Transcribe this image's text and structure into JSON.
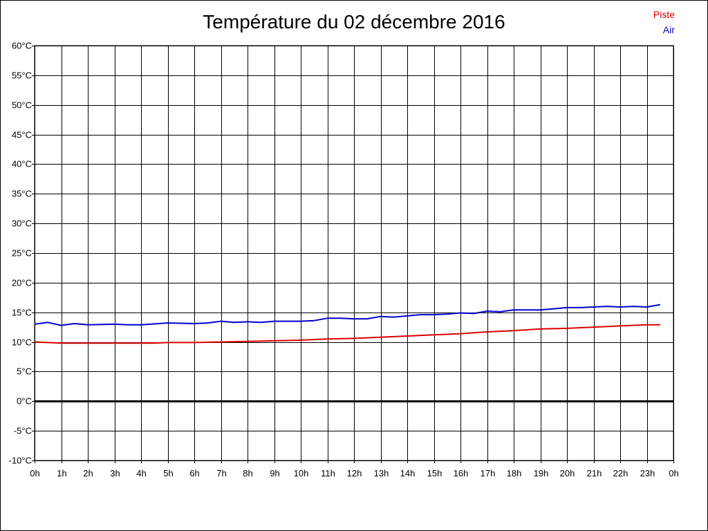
{
  "chart_data": {
    "type": "line",
    "title": "Température du 02 décembre 2016",
    "xlabel": "",
    "ylabel": "",
    "xlim": [
      0,
      24
    ],
    "ylim": [
      -10,
      60
    ],
    "y_tick_values": [
      60,
      55,
      50,
      45,
      40,
      35,
      30,
      25,
      20,
      15,
      10,
      5,
      0,
      -5,
      -10
    ],
    "y_tick_labels": [
      "60°C",
      "55°C",
      "50°C",
      "45°C",
      "40°C",
      "35°C",
      "30°C",
      "25°C",
      "20°C",
      "15°C",
      "10°C",
      "5°C",
      "0°C",
      "-5°C",
      "-10°C"
    ],
    "x_tick_values": [
      0,
      1,
      2,
      3,
      4,
      5,
      6,
      7,
      8,
      9,
      10,
      11,
      12,
      13,
      14,
      15,
      16,
      17,
      18,
      19,
      20,
      21,
      22,
      23,
      24
    ],
    "x_tick_labels": [
      "0h",
      "1h",
      "2h",
      "3h",
      "4h",
      "5h",
      "6h",
      "7h",
      "8h",
      "9h",
      "10h",
      "11h",
      "12h",
      "13h",
      "14h",
      "15h",
      "16h",
      "17h",
      "18h",
      "19h",
      "20h",
      "21h",
      "22h",
      "23h",
      "0h"
    ],
    "grid": true,
    "legend_position": "top-right",
    "zero_line": true,
    "colors": {
      "piste": "#dd0000",
      "air": "#0000cc",
      "grid": "#000000"
    },
    "series": [
      {
        "name": "Piste",
        "color": "#dd0000",
        "x": [
          0,
          0.5,
          1,
          2,
          3,
          4,
          4.5,
          5,
          6,
          7,
          8,
          9,
          10,
          11,
          12,
          13,
          14,
          15,
          16,
          17,
          18,
          19,
          20,
          21,
          22,
          23,
          23.5
        ],
        "y": [
          10.0,
          9.9,
          9.8,
          9.8,
          9.8,
          9.8,
          9.8,
          9.9,
          9.9,
          10.0,
          10.1,
          10.2,
          10.3,
          10.5,
          10.6,
          10.8,
          11.0,
          11.2,
          11.4,
          11.7,
          11.9,
          12.2,
          12.3,
          12.5,
          12.7,
          12.9,
          12.9
        ]
      },
      {
        "name": "Air",
        "color": "#0000cc",
        "x": [
          0,
          0.5,
          1,
          1.5,
          2,
          3,
          3.5,
          4,
          5,
          6,
          6.5,
          7,
          7.5,
          8,
          8.5,
          9,
          10,
          10.5,
          11,
          11.5,
          12,
          12.5,
          13,
          13.5,
          14,
          14.5,
          15,
          15.5,
          16,
          16.5,
          17,
          17.5,
          18,
          18.5,
          19,
          19.5,
          20,
          20.5,
          21,
          21.5,
          22,
          22.5,
          23,
          23.5
        ],
        "y": [
          13.0,
          13.3,
          12.8,
          13.1,
          12.9,
          13.0,
          12.9,
          12.9,
          13.2,
          13.1,
          13.2,
          13.5,
          13.3,
          13.4,
          13.3,
          13.5,
          13.5,
          13.6,
          14.0,
          14.0,
          13.9,
          13.9,
          14.3,
          14.2,
          14.4,
          14.6,
          14.6,
          14.7,
          14.9,
          14.8,
          15.2,
          15.1,
          15.4,
          15.4,
          15.4,
          15.6,
          15.8,
          15.8,
          15.9,
          16.0,
          15.9,
          16.0,
          15.9,
          16.3
        ]
      }
    ]
  }
}
